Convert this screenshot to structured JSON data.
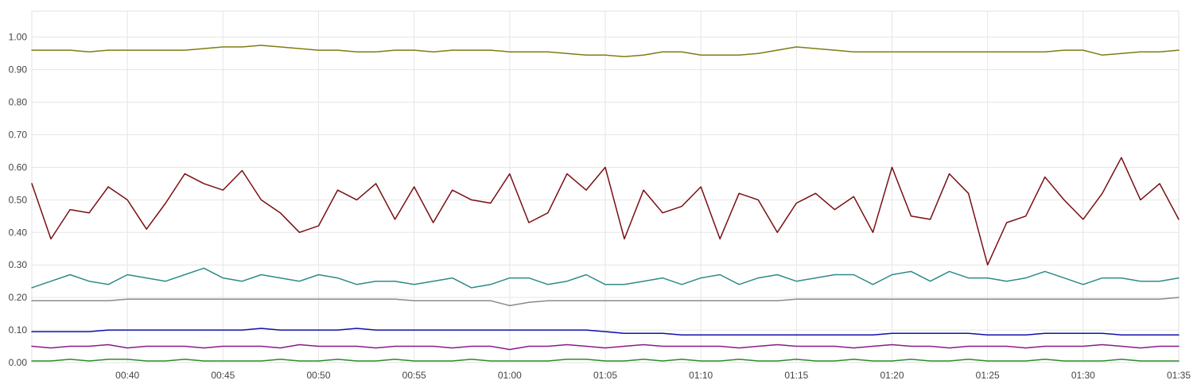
{
  "chart_data": {
    "type": "line",
    "title": "",
    "xlabel": "",
    "ylabel": "",
    "xlim": [
      "00:35",
      "01:35"
    ],
    "ylim": [
      0,
      1.08
    ],
    "grid": true,
    "legend": "none",
    "x_ticks": [
      "00:40",
      "00:45",
      "00:50",
      "00:55",
      "01:00",
      "01:05",
      "01:10",
      "01:15",
      "01:20",
      "01:25",
      "01:30",
      "01:35"
    ],
    "y_ticks": [
      "0.00",
      "0.10",
      "0.20",
      "0.30",
      "0.40",
      "0.50",
      "0.60",
      "0.70",
      "0.80",
      "0.90",
      "1.00"
    ],
    "x": [
      "00:35",
      "00:36",
      "00:37",
      "00:38",
      "00:39",
      "00:40",
      "00:41",
      "00:42",
      "00:43",
      "00:44",
      "00:45",
      "00:46",
      "00:47",
      "00:48",
      "00:49",
      "00:50",
      "00:51",
      "00:52",
      "00:53",
      "00:54",
      "00:55",
      "00:56",
      "00:57",
      "00:58",
      "00:59",
      "01:00",
      "01:01",
      "01:02",
      "01:03",
      "01:04",
      "01:05",
      "01:06",
      "01:07",
      "01:08",
      "01:09",
      "01:10",
      "01:11",
      "01:12",
      "01:13",
      "01:14",
      "01:15",
      "01:16",
      "01:17",
      "01:18",
      "01:19",
      "01:20",
      "01:21",
      "01:22",
      "01:23",
      "01:24",
      "01:25",
      "01:26",
      "01:27",
      "01:28",
      "01:29",
      "01:30",
      "01:31",
      "01:32",
      "01:33",
      "01:34",
      "01:35"
    ],
    "series": [
      {
        "color": "#7d7d10",
        "values": [
          0.96,
          0.96,
          0.96,
          0.955,
          0.96,
          0.96,
          0.96,
          0.96,
          0.96,
          0.965,
          0.97,
          0.97,
          0.975,
          0.97,
          0.965,
          0.96,
          0.96,
          0.955,
          0.955,
          0.96,
          0.96,
          0.955,
          0.96,
          0.96,
          0.96,
          0.955,
          0.955,
          0.955,
          0.95,
          0.945,
          0.945,
          0.94,
          0.945,
          0.955,
          0.955,
          0.945,
          0.945,
          0.945,
          0.95,
          0.96,
          0.97,
          0.965,
          0.96,
          0.955,
          0.955,
          0.955,
          0.955,
          0.955,
          0.955,
          0.955,
          0.955,
          0.955,
          0.955,
          0.955,
          0.96,
          0.96,
          0.945,
          0.95,
          0.955,
          0.955,
          0.96
        ]
      },
      {
        "color": "#7a0f12",
        "values": [
          0.55,
          0.38,
          0.47,
          0.46,
          0.54,
          0.5,
          0.41,
          0.49,
          0.58,
          0.55,
          0.53,
          0.59,
          0.5,
          0.46,
          0.4,
          0.42,
          0.53,
          0.5,
          0.55,
          0.44,
          0.54,
          0.43,
          0.53,
          0.5,
          0.49,
          0.58,
          0.43,
          0.46,
          0.58,
          0.53,
          0.6,
          0.38,
          0.53,
          0.46,
          0.48,
          0.54,
          0.38,
          0.52,
          0.5,
          0.4,
          0.49,
          0.52,
          0.47,
          0.51,
          0.4,
          0.6,
          0.45,
          0.44,
          0.58,
          0.52,
          0.3,
          0.43,
          0.45,
          0.57,
          0.5,
          0.44,
          0.52,
          0.63,
          0.5,
          0.55,
          0.44
        ]
      },
      {
        "color": "#2e8a8a",
        "values": [
          0.23,
          0.25,
          0.27,
          0.25,
          0.24,
          0.27,
          0.26,
          0.25,
          0.27,
          0.29,
          0.26,
          0.25,
          0.27,
          0.26,
          0.25,
          0.27,
          0.26,
          0.24,
          0.25,
          0.25,
          0.24,
          0.25,
          0.26,
          0.23,
          0.24,
          0.26,
          0.26,
          0.24,
          0.25,
          0.27,
          0.24,
          0.24,
          0.25,
          0.26,
          0.24,
          0.26,
          0.27,
          0.24,
          0.26,
          0.27,
          0.25,
          0.26,
          0.27,
          0.27,
          0.24,
          0.27,
          0.28,
          0.25,
          0.28,
          0.26,
          0.26,
          0.25,
          0.26,
          0.28,
          0.26,
          0.24,
          0.26,
          0.26,
          0.25,
          0.25,
          0.26
        ]
      },
      {
        "color": "#8a8a8a",
        "values": [
          0.19,
          0.19,
          0.19,
          0.19,
          0.19,
          0.195,
          0.195,
          0.195,
          0.195,
          0.195,
          0.195,
          0.195,
          0.195,
          0.195,
          0.195,
          0.195,
          0.195,
          0.195,
          0.195,
          0.195,
          0.19,
          0.19,
          0.19,
          0.19,
          0.19,
          0.175,
          0.185,
          0.19,
          0.19,
          0.19,
          0.19,
          0.19,
          0.19,
          0.19,
          0.19,
          0.19,
          0.19,
          0.19,
          0.19,
          0.19,
          0.195,
          0.195,
          0.195,
          0.195,
          0.195,
          0.195,
          0.195,
          0.195,
          0.195,
          0.195,
          0.195,
          0.195,
          0.195,
          0.195,
          0.195,
          0.195,
          0.195,
          0.195,
          0.195,
          0.195,
          0.2
        ]
      },
      {
        "color": "#1010aa",
        "values": [
          0.095,
          0.095,
          0.095,
          0.095,
          0.1,
          0.1,
          0.1,
          0.1,
          0.1,
          0.1,
          0.1,
          0.1,
          0.105,
          0.1,
          0.1,
          0.1,
          0.1,
          0.105,
          0.1,
          0.1,
          0.1,
          0.1,
          0.1,
          0.1,
          0.1,
          0.1,
          0.1,
          0.1,
          0.1,
          0.1,
          0.095,
          0.09,
          0.09,
          0.09,
          0.085,
          0.085,
          0.085,
          0.085,
          0.085,
          0.085,
          0.085,
          0.085,
          0.085,
          0.085,
          0.085,
          0.09,
          0.09,
          0.09,
          0.09,
          0.09,
          0.085,
          0.085,
          0.085,
          0.09,
          0.09,
          0.09,
          0.09,
          0.085,
          0.085,
          0.085,
          0.085
        ]
      },
      {
        "color": "#8a1a8a",
        "values": [
          0.05,
          0.045,
          0.05,
          0.05,
          0.055,
          0.045,
          0.05,
          0.05,
          0.05,
          0.045,
          0.05,
          0.05,
          0.05,
          0.045,
          0.055,
          0.05,
          0.05,
          0.05,
          0.045,
          0.05,
          0.05,
          0.05,
          0.045,
          0.05,
          0.05,
          0.04,
          0.05,
          0.05,
          0.055,
          0.05,
          0.045,
          0.05,
          0.055,
          0.05,
          0.05,
          0.05,
          0.05,
          0.045,
          0.05,
          0.055,
          0.05,
          0.05,
          0.05,
          0.045,
          0.05,
          0.055,
          0.05,
          0.05,
          0.045,
          0.05,
          0.05,
          0.05,
          0.045,
          0.05,
          0.05,
          0.05,
          0.055,
          0.05,
          0.045,
          0.05,
          0.05
        ]
      },
      {
        "color": "#2a8a2a",
        "values": [
          0.005,
          0.005,
          0.01,
          0.005,
          0.01,
          0.01,
          0.005,
          0.005,
          0.01,
          0.005,
          0.005,
          0.005,
          0.005,
          0.01,
          0.005,
          0.005,
          0.01,
          0.005,
          0.005,
          0.01,
          0.005,
          0.005,
          0.005,
          0.01,
          0.005,
          0.005,
          0.005,
          0.005,
          0.01,
          0.01,
          0.005,
          0.005,
          0.01,
          0.005,
          0.01,
          0.005,
          0.005,
          0.01,
          0.005,
          0.005,
          0.01,
          0.005,
          0.005,
          0.01,
          0.005,
          0.005,
          0.01,
          0.005,
          0.005,
          0.01,
          0.005,
          0.005,
          0.005,
          0.01,
          0.005,
          0.005,
          0.005,
          0.01,
          0.005,
          0.005,
          0.005
        ]
      }
    ]
  }
}
